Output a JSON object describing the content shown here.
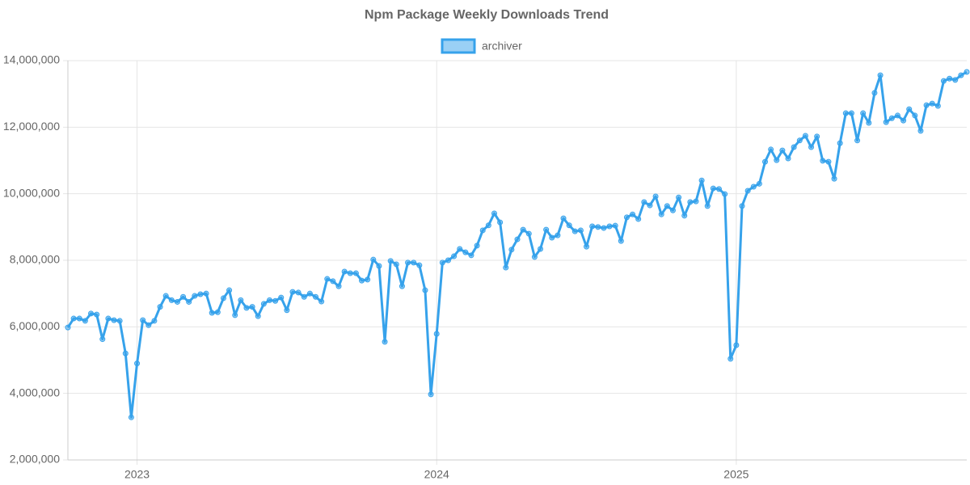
{
  "chart_data": {
    "type": "line",
    "title": "Npm Package Weekly Downloads Trend",
    "categories": [
      null,
      null,
      null,
      null,
      null,
      null,
      null,
      null,
      null,
      null,
      null,
      null,
      "2023",
      null,
      null,
      null,
      null,
      null,
      null,
      null,
      null,
      null,
      null,
      null,
      null,
      null,
      null,
      null,
      null,
      null,
      null,
      null,
      null,
      null,
      null,
      null,
      null,
      null,
      null,
      null,
      null,
      null,
      null,
      null,
      null,
      null,
      null,
      null,
      null,
      null,
      null,
      null,
      null,
      null,
      null,
      null,
      null,
      null,
      null,
      null,
      null,
      null,
      null,
      null,
      "2024",
      null,
      null,
      null,
      null,
      null,
      null,
      null,
      null,
      null,
      null,
      null,
      null,
      null,
      null,
      null,
      null,
      null,
      null,
      null,
      null,
      null,
      null,
      null,
      null,
      null,
      null,
      null,
      null,
      null,
      null,
      null,
      null,
      null,
      null,
      null,
      null,
      null,
      null,
      null,
      null,
      null,
      null,
      null,
      null,
      null,
      null,
      null,
      null,
      null,
      null,
      null,
      "2025",
      null,
      null,
      null,
      null,
      null,
      null,
      null,
      null,
      null,
      null,
      null,
      null,
      null,
      null,
      null,
      null,
      null,
      null,
      null,
      null,
      null,
      null,
      null,
      null,
      null,
      null,
      null,
      null,
      null,
      null,
      null,
      null,
      null,
      null,
      null,
      null,
      null,
      null,
      null,
      null
    ],
    "series": [
      {
        "name": "archiver",
        "color": "#36a2eb",
        "values": [
          5980000,
          6250000,
          6250000,
          6180000,
          6400000,
          6370000,
          5630000,
          6250000,
          6200000,
          6180000,
          5200000,
          3280000,
          4900000,
          6200000,
          6050000,
          6180000,
          6600000,
          6930000,
          6800000,
          6750000,
          6900000,
          6750000,
          6930000,
          6980000,
          7000000,
          6420000,
          6440000,
          6860000,
          7100000,
          6350000,
          6800000,
          6570000,
          6600000,
          6320000,
          6690000,
          6800000,
          6780000,
          6880000,
          6500000,
          7050000,
          7030000,
          6900000,
          7000000,
          6900000,
          6760000,
          7440000,
          7370000,
          7220000,
          7660000,
          7610000,
          7610000,
          7390000,
          7420000,
          8020000,
          7830000,
          5550000,
          7980000,
          7880000,
          7220000,
          7930000,
          7930000,
          7850000,
          7100000,
          3970000,
          5790000,
          7930000,
          8000000,
          8120000,
          8340000,
          8240000,
          8150000,
          8440000,
          8900000,
          9050000,
          9410000,
          9140000,
          7780000,
          8320000,
          8630000,
          8920000,
          8800000,
          8100000,
          8340000,
          8920000,
          8680000,
          8750000,
          9260000,
          9050000,
          8870000,
          8900000,
          8410000,
          9020000,
          9000000,
          8970000,
          9020000,
          9040000,
          8580000,
          9290000,
          9380000,
          9240000,
          9750000,
          9650000,
          9920000,
          9380000,
          9630000,
          9500000,
          9890000,
          9340000,
          9750000,
          9770000,
          10400000,
          9630000,
          10160000,
          10140000,
          9990000,
          5040000,
          5450000,
          9630000,
          10090000,
          10210000,
          10300000,
          10960000,
          11330000,
          11010000,
          11300000,
          11060000,
          11400000,
          11600000,
          11740000,
          11400000,
          11720000,
          10990000,
          10960000,
          10450000,
          11520000,
          12420000,
          12420000,
          11600000,
          12420000,
          12130000,
          13030000,
          13560000,
          12150000,
          12270000,
          12350000,
          12200000,
          12540000,
          12350000,
          11890000,
          12660000,
          12710000,
          12640000,
          13390000,
          13460000,
          13420000,
          13560000,
          13660000
        ]
      }
    ],
    "ylim": [
      2000000,
      14000000
    ],
    "yticks": [
      {
        "value": 2000000,
        "label": "2,000,000"
      },
      {
        "value": 4000000,
        "label": "4,000,000"
      },
      {
        "value": 6000000,
        "label": "6,000,000"
      },
      {
        "value": 8000000,
        "label": "8,000,000"
      },
      {
        "value": 10000000,
        "label": "10,000,000"
      },
      {
        "value": 12000000,
        "label": "12,000,000"
      },
      {
        "value": 14000000,
        "label": "14,000,000"
      }
    ],
    "grid": true,
    "legend": "top"
  }
}
